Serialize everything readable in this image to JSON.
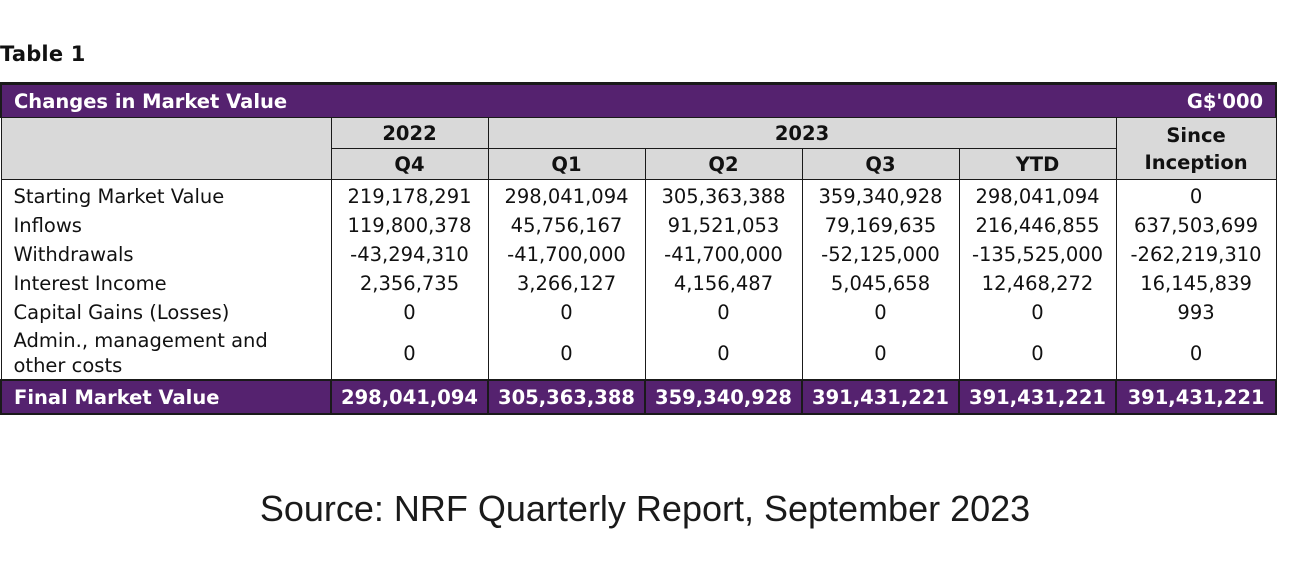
{
  "caption": "Table 1",
  "table": {
    "title": "Changes in Market Value",
    "unit": "G$'000",
    "years": {
      "y2022": "2022",
      "y2023": "2023"
    },
    "since_inception": [
      "Since",
      "Inception"
    ],
    "periods": [
      "Q4",
      "Q1",
      "Q2",
      "Q3",
      "YTD"
    ],
    "rows": [
      {
        "label": [
          "Starting Market Value"
        ],
        "values": [
          "219,178,291",
          "298,041,094",
          "305,363,388",
          "359,340,928",
          "298,041,094",
          "0"
        ]
      },
      {
        "label": [
          "Inflows"
        ],
        "values": [
          "119,800,378",
          "45,756,167",
          "91,521,053",
          "79,169,635",
          "216,446,855",
          "637,503,699"
        ]
      },
      {
        "label": [
          "Withdrawals"
        ],
        "values": [
          "-43,294,310",
          "-41,700,000",
          "-41,700,000",
          "-52,125,000",
          "-135,525,000",
          "-262,219,310"
        ]
      },
      {
        "label": [
          "Interest Income"
        ],
        "values": [
          "2,356,735",
          "3,266,127",
          "4,156,487",
          "5,045,658",
          "12,468,272",
          "16,145,839"
        ]
      },
      {
        "label": [
          "Capital Gains (Losses)"
        ],
        "values": [
          "0",
          "0",
          "0",
          "0",
          "0",
          "993"
        ]
      },
      {
        "label": [
          "Admin., management and",
          "other costs"
        ],
        "values": [
          "0",
          "0",
          "0",
          "0",
          "0",
          "0"
        ]
      }
    ],
    "final": {
      "label": "Final Market Value",
      "values": [
        "298,041,094",
        "305,363,388",
        "359,340,928",
        "391,431,221",
        "391,431,221",
        "391,431,221"
      ]
    }
  },
  "source": "Source: NRF Quarterly Report, September 2023"
}
